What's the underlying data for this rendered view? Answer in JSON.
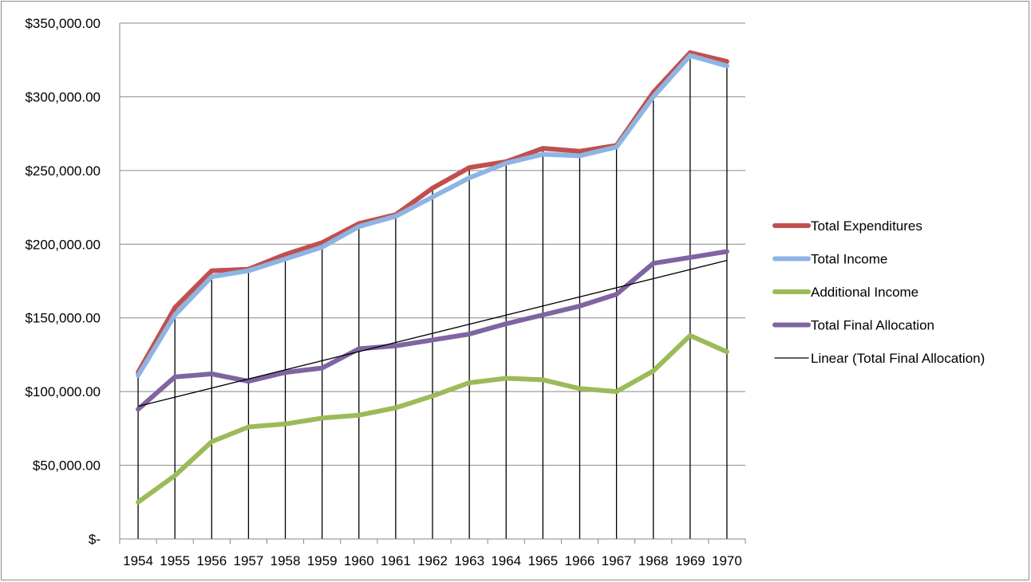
{
  "chart_data": {
    "type": "line",
    "categories": [
      "1954",
      "1955",
      "1956",
      "1957",
      "1958",
      "1959",
      "1960",
      "1961",
      "1962",
      "1963",
      "1964",
      "1965",
      "1966",
      "1967",
      "1968",
      "1969",
      "1970"
    ],
    "ylim": [
      0,
      350000
    ],
    "y_ticks": [
      {
        "value": 0,
        "label": "$-"
      },
      {
        "value": 50000,
        "label": "$50,000.00"
      },
      {
        "value": 100000,
        "label": "$100,000.00"
      },
      {
        "value": 150000,
        "label": "$150,000.00"
      },
      {
        "value": 200000,
        "label": "$200,000.00"
      },
      {
        "value": 250000,
        "label": "$250,000.00"
      },
      {
        "value": 300000,
        "label": "$300,000.00"
      },
      {
        "value": 350000,
        "label": "$350,000.00"
      }
    ],
    "grid": "horizontal",
    "drop_lines": true,
    "legend_position": "right",
    "series": [
      {
        "name": "Total Expenditures",
        "color": "#c0504d",
        "values": [
          113000,
          157000,
          182000,
          183000,
          193000,
          201000,
          214000,
          220000,
          238000,
          252000,
          256000,
          265000,
          263000,
          267000,
          303000,
          330000,
          324000
        ]
      },
      {
        "name": "Total Income",
        "color": "#8eb4e3",
        "values": [
          111000,
          152000,
          178000,
          182000,
          190000,
          198000,
          212000,
          219000,
          232000,
          245000,
          255000,
          261000,
          260000,
          266000,
          300000,
          328000,
          321000
        ]
      },
      {
        "name": "Additional Income",
        "color": "#9bbb59",
        "values": [
          25000,
          43000,
          66000,
          76000,
          78000,
          82000,
          84000,
          89000,
          97000,
          106000,
          109000,
          108000,
          102000,
          100000,
          114000,
          138000,
          127000
        ]
      },
      {
        "name": "Total Final Allocation",
        "color": "#8064a2",
        "values": [
          88000,
          110000,
          112000,
          107000,
          113000,
          116000,
          129000,
          131000,
          135000,
          139000,
          146000,
          152000,
          158000,
          166000,
          187000,
          191000,
          195000
        ]
      }
    ],
    "trendline": {
      "name": "Linear (Total Final Allocation)",
      "color": "#000000",
      "start": 90000,
      "end": 189000
    }
  }
}
